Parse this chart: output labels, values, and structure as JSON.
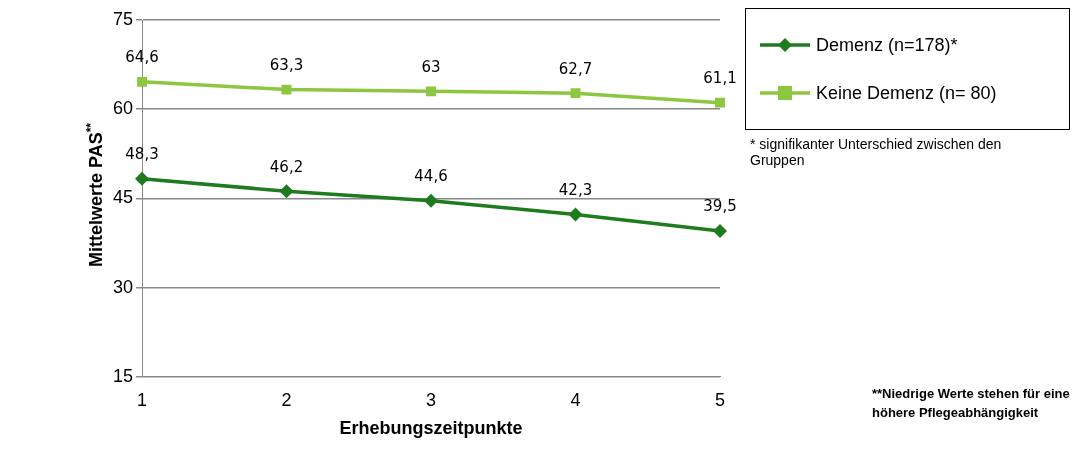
{
  "chart_data": {
    "type": "line",
    "xlabel": "Erhebungszeitpunkte",
    "ylabel": "Mittelwerte PAS$^{**}$",
    "categories": [
      "1",
      "2",
      "3",
      "4",
      "5"
    ],
    "series": [
      {
        "name": "Demenz (n=178)*",
        "color": "#1e7b1e",
        "marker": "diamond",
        "values": [
          48.3,
          46.2,
          44.6,
          42.3,
          39.5
        ],
        "value_labels": [
          "48,3",
          "46,2",
          "44,6",
          "42,3",
          "39,5"
        ]
      },
      {
        "name": "Keine Demenz (n= 80)",
        "color": "#8dc63f",
        "marker": "square",
        "values": [
          64.6,
          63.3,
          63,
          62.7,
          61.1
        ],
        "value_labels": [
          "64,6",
          "63,3",
          "63",
          "62,7",
          "61,1"
        ]
      }
    ],
    "ylim": [
      15,
      75
    ],
    "yticks": [
      15,
      30,
      45,
      60,
      75
    ],
    "grid": "y",
    "legend": "top right",
    "annotations": [
      "* signifikanter Unterschied zwischen den Gruppen",
      "**Niedrige Werte stehen für eine höhere Pflegeabhängigkeit"
    ]
  }
}
